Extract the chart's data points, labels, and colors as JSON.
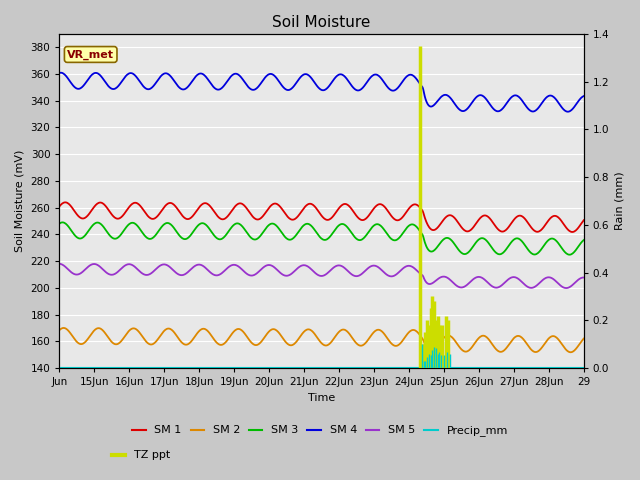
{
  "title": "Soil Moisture",
  "xlabel": "Time",
  "ylabel_left": "Soil Moisture (mV)",
  "ylabel_right": "Rain (mm)",
  "ylim_left": [
    140,
    390
  ],
  "ylim_right": [
    0.0,
    1.4
  ],
  "yticks_left": [
    140,
    160,
    180,
    200,
    220,
    240,
    260,
    280,
    300,
    320,
    340,
    360,
    380
  ],
  "yticks_right": [
    0.0,
    0.2,
    0.4,
    0.6,
    0.8,
    1.0,
    1.2,
    1.4
  ],
  "xlim": [
    0,
    15
  ],
  "n_days": 15,
  "background_color": "#c8c8c8",
  "plot_bg_color": "#e8e8e8",
  "grid_color": "#ffffff",
  "sm1_color": "#dd0000",
  "sm2_color": "#dd8800",
  "sm3_color": "#00bb00",
  "sm4_color": "#0000dd",
  "sm5_color": "#9933cc",
  "precip_color": "#00cccc",
  "tzppt_color": "#ccdd00",
  "vr_met_bg": "#ffffaa",
  "vr_met_border": "#886600",
  "vr_met_text": "#880000",
  "legend_fontsize": 8,
  "title_fontsize": 11,
  "axis_label_fontsize": 8,
  "tick_fontsize": 7.5,
  "sm1_base": 258,
  "sm1_amp": 6,
  "sm1_drop": 8,
  "sm2_base": 164,
  "sm2_amp": 6,
  "sm2_drop": 4,
  "sm3_base": 243,
  "sm3_amp": 6,
  "sm3_drop": 10,
  "sm4_base": 355,
  "sm4_amp": 6,
  "sm4_drop": 15,
  "sm5_base": 214,
  "sm5_amp": 4,
  "sm5_drop": 8
}
